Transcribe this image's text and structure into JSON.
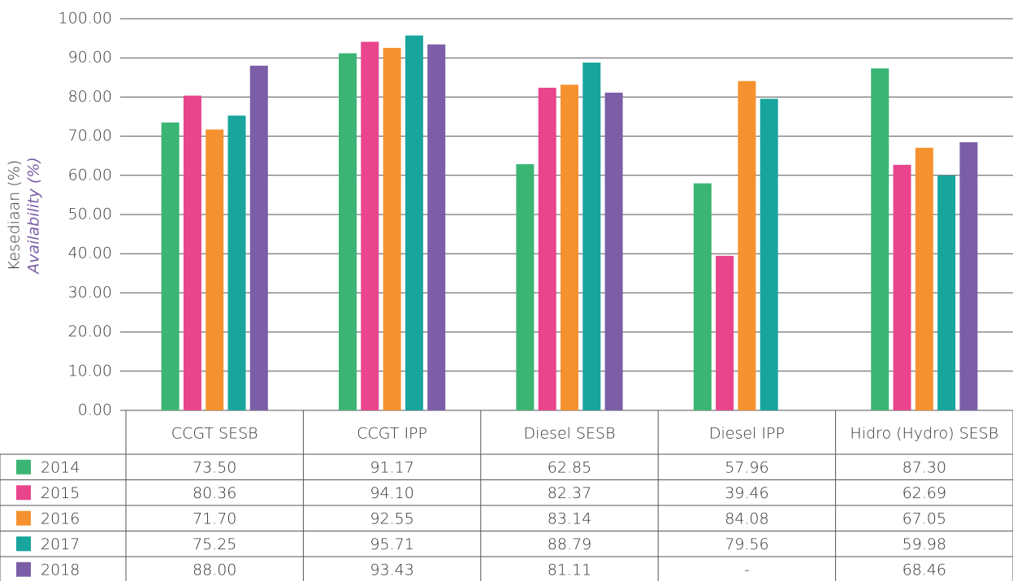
{
  "chart_data": {
    "type": "bar",
    "y_label": "Kesediaan (%)",
    "y_label_en": "Availability (%)",
    "categories": [
      "CCGT SESB",
      "CCGT IPP",
      "Diesel SESB",
      "Diesel IPP",
      "Hidro (Hydro) SESB"
    ],
    "series": [
      {
        "name": "2014",
        "color": "#3bb574",
        "values": [
          73.5,
          91.17,
          62.85,
          57.96,
          87.3
        ],
        "value_labels": [
          "73.50",
          "91.17",
          "62.85",
          "57.96",
          "87.30"
        ]
      },
      {
        "name": "2015",
        "color": "#e8458c",
        "values": [
          80.36,
          94.1,
          82.37,
          39.46,
          62.69
        ],
        "value_labels": [
          "80.36",
          "94.10",
          "82.37",
          "39.46",
          "62.69"
        ]
      },
      {
        "name": "2016",
        "color": "#f5922f",
        "values": [
          71.7,
          92.55,
          83.14,
          84.08,
          67.05
        ],
        "value_labels": [
          "71.70",
          "92.55",
          "83.14",
          "84.08",
          "67.05"
        ]
      },
      {
        "name": "2017",
        "color": "#17a59e",
        "values": [
          75.25,
          95.71,
          88.79,
          79.56,
          59.98
        ],
        "value_labels": [
          "75.25",
          "95.71",
          "88.79",
          "79.56",
          "59.98"
        ]
      },
      {
        "name": "2018",
        "color": "#7b5ea7",
        "values": [
          88.0,
          93.43,
          81.11,
          null,
          68.46
        ],
        "value_labels": [
          "88.00",
          "93.43",
          "81.11",
          "-",
          "68.46"
        ]
      }
    ],
    "ylim": [
      0,
      100
    ],
    "yticks": [
      {
        "value": 0,
        "label": "0.00"
      },
      {
        "value": 10,
        "label": "10.00"
      },
      {
        "value": 20,
        "label": "20.00"
      },
      {
        "value": 30,
        "label": "30.00"
      },
      {
        "value": 40,
        "label": "40.00"
      },
      {
        "value": 50,
        "label": "50.00"
      },
      {
        "value": 60,
        "label": "60.00"
      },
      {
        "value": 70,
        "label": "70.00"
      },
      {
        "value": 80,
        "label": "80.00"
      },
      {
        "value": 90,
        "label": "90.00"
      },
      {
        "value": 100,
        "label": "100.00"
      }
    ],
    "grid": true
  }
}
